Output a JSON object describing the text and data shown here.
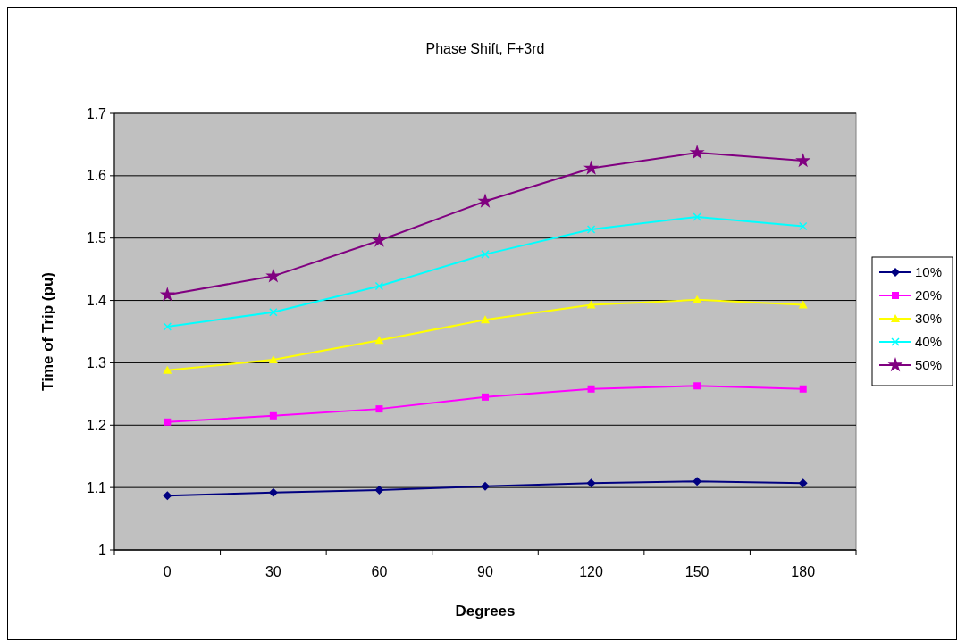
{
  "chart_data": {
    "type": "line",
    "title": "Phase Shift, F+3rd",
    "xlabel": "Degrees",
    "ylabel": "Time of Trip (pu)",
    "categories": [
      "0",
      "30",
      "60",
      "90",
      "120",
      "150",
      "180"
    ],
    "ylim": [
      1,
      1.7
    ],
    "yticks": [
      1,
      1.1,
      1.2,
      1.3,
      1.4,
      1.5,
      1.6,
      1.7
    ],
    "grid": "y",
    "legend": "right",
    "series": [
      {
        "name": "10%",
        "color": "#000080",
        "marker": "diamond",
        "values": [
          1.087,
          1.092,
          1.096,
          1.102,
          1.107,
          1.11,
          1.107
        ]
      },
      {
        "name": "20%",
        "color": "#ff00ff",
        "marker": "square",
        "values": [
          1.205,
          1.215,
          1.226,
          1.245,
          1.258,
          1.263,
          1.258
        ]
      },
      {
        "name": "30%",
        "color": "#ffff00",
        "marker": "triangle",
        "values": [
          1.288,
          1.305,
          1.336,
          1.369,
          1.393,
          1.401,
          1.393
        ]
      },
      {
        "name": "40%",
        "color": "#00ffff",
        "marker": "cross",
        "values": [
          1.358,
          1.381,
          1.423,
          1.474,
          1.514,
          1.534,
          1.519
        ]
      },
      {
        "name": "50%",
        "color": "#800080",
        "marker": "star",
        "values": [
          1.409,
          1.439,
          1.496,
          1.559,
          1.612,
          1.637,
          1.624
        ]
      }
    ]
  }
}
